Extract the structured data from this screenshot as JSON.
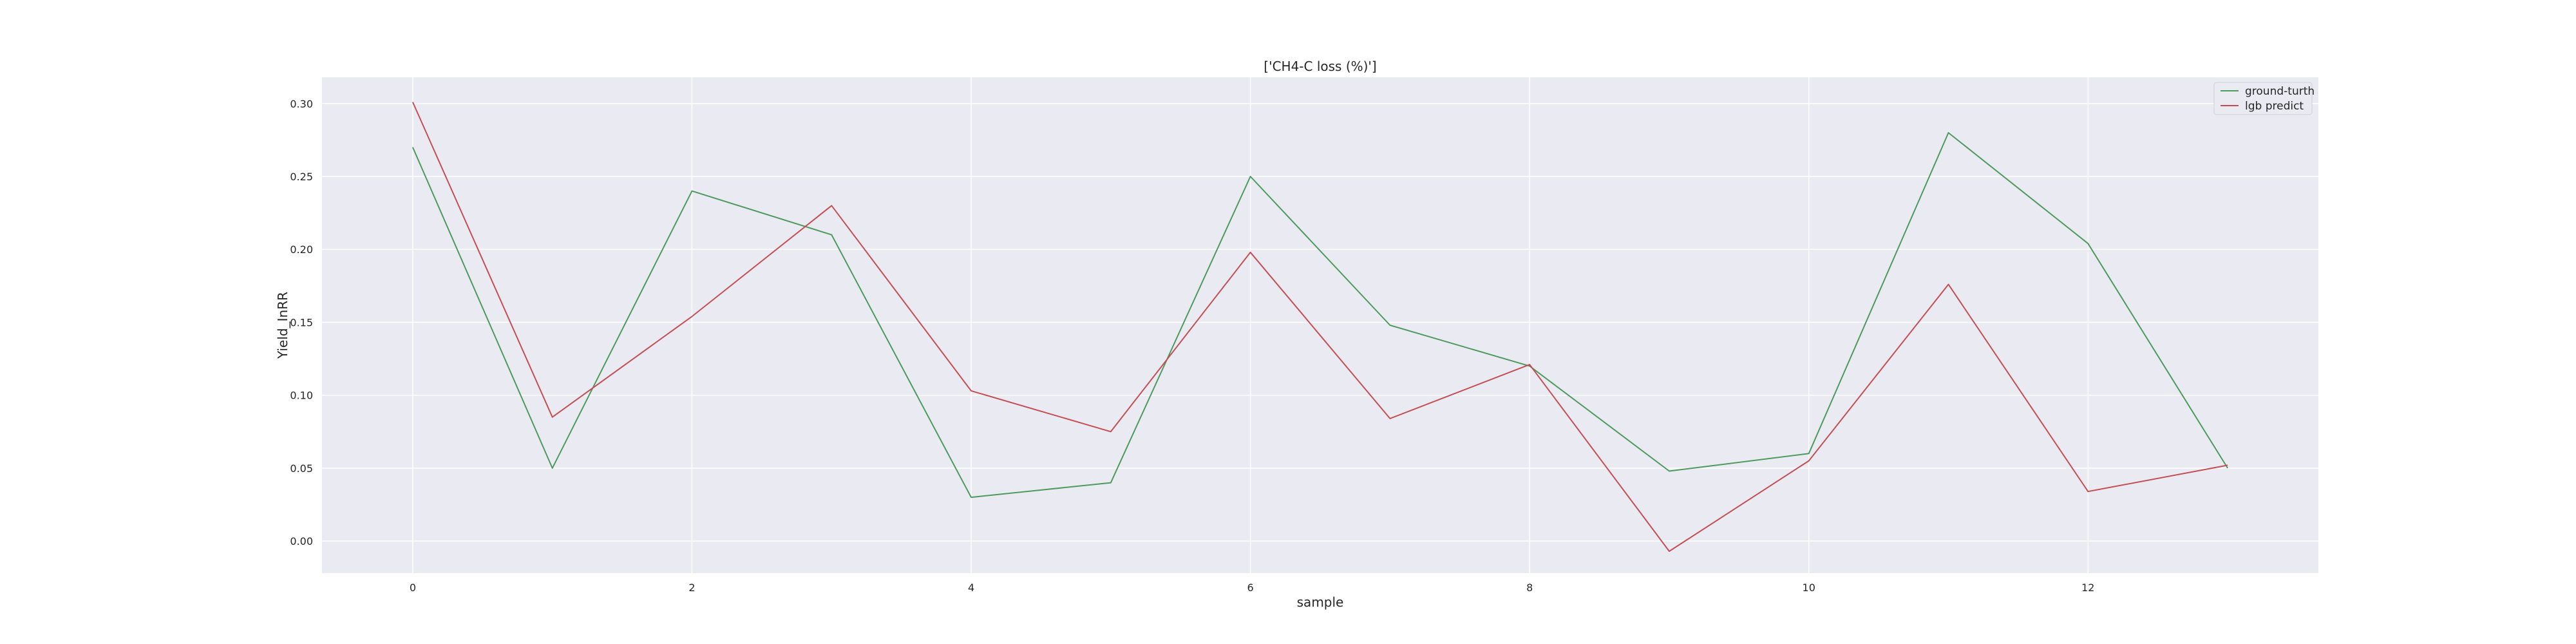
{
  "chart_data": {
    "type": "line",
    "title": "['CH4-C loss (%)']",
    "xlabel": "sample",
    "ylabel": "Yield_InRR",
    "x": [
      0,
      1,
      2,
      3,
      4,
      5,
      6,
      7,
      8,
      9,
      10,
      11,
      12,
      13
    ],
    "xlim": [
      -0.65,
      13.65
    ],
    "ylim": [
      -0.022,
      0.318
    ],
    "x_ticks": [
      0,
      2,
      4,
      6,
      8,
      10,
      12
    ],
    "y_ticks": [
      0.0,
      0.05,
      0.1,
      0.15,
      0.2,
      0.25,
      0.3
    ],
    "x_tick_labels": [
      "0",
      "2",
      "4",
      "6",
      "8",
      "10",
      "12"
    ],
    "y_tick_labels": [
      "0.00",
      "0.05",
      "0.10",
      "0.15",
      "0.20",
      "0.25",
      "0.30"
    ],
    "grid": true,
    "legend_position": "top-right",
    "series": [
      {
        "name": "ground-turth",
        "color": "#4c9a5c",
        "values": [
          0.27,
          0.05,
          0.24,
          0.21,
          0.03,
          0.04,
          0.25,
          0.148,
          0.12,
          0.048,
          0.06,
          0.28,
          0.204,
          0.05
        ]
      },
      {
        "name": "lgb predict",
        "color": "#c44e52",
        "values": [
          0.301,
          0.085,
          0.154,
          0.23,
          0.103,
          0.075,
          0.198,
          0.084,
          0.121,
          -0.007,
          0.055,
          0.176,
          0.034,
          0.052
        ]
      }
    ]
  }
}
